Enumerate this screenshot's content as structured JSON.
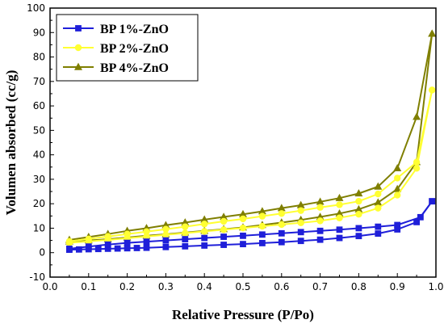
{
  "chart_data": {
    "type": "line",
    "xlabel": "Relative Pressure (P/Po)",
    "ylabel": "Volumen absorbed (cc/g)",
    "xlim": [
      0.0,
      1.0
    ],
    "ylim": [
      -10,
      100
    ],
    "xticks": [
      "0.0",
      "0.1",
      "0.2",
      "0.3",
      "0.4",
      "0.5",
      "0.6",
      "0.7",
      "0.8",
      "0.9",
      "1.0"
    ],
    "yticks": [
      "-10",
      "0",
      "10",
      "20",
      "30",
      "40",
      "50",
      "60",
      "70",
      "80",
      "90",
      "100"
    ],
    "grid": false,
    "legend_position": "top-left",
    "series": [
      {
        "name": "BP 4%-ZnO",
        "color": "#7f7f00",
        "marker": "triangle",
        "adsorption": {
          "x": [
            0.05,
            0.1,
            0.15,
            0.2,
            0.25,
            0.3,
            0.35,
            0.4,
            0.45,
            0.5,
            0.55,
            0.6,
            0.65,
            0.7,
            0.75,
            0.8,
            0.85,
            0.9,
            0.95,
            0.99
          ],
          "y": [
            4.5,
            5.0,
            5.5,
            6.2,
            6.9,
            7.5,
            8.2,
            8.9,
            9.6,
            10.3,
            11.3,
            12.3,
            13.4,
            14.6,
            16.0,
            17.7,
            20.5,
            26.0,
            37.0,
            89.5
          ]
        },
        "desorption": {
          "x": [
            0.99,
            0.95,
            0.9,
            0.85,
            0.8,
            0.75,
            0.7,
            0.65,
            0.6,
            0.55,
            0.5,
            0.45,
            0.4,
            0.35,
            0.3,
            0.25,
            0.2,
            0.15,
            0.1,
            0.05
          ],
          "y": [
            89.5,
            55.5,
            34.5,
            27.0,
            24.2,
            22.3,
            20.8,
            19.4,
            18.2,
            16.9,
            15.7,
            14.6,
            13.5,
            12.3,
            11.2,
            10.0,
            8.9,
            7.6,
            6.4,
            5.2
          ]
        }
      },
      {
        "name": "BP 2%-ZnO",
        "color": "#ffff33",
        "marker": "circle",
        "adsorption": {
          "x": [
            0.05,
            0.1,
            0.15,
            0.2,
            0.25,
            0.3,
            0.35,
            0.4,
            0.45,
            0.5,
            0.55,
            0.6,
            0.65,
            0.7,
            0.75,
            0.8,
            0.85,
            0.9,
            0.95,
            0.99
          ],
          "y": [
            4.0,
            4.6,
            5.2,
            5.9,
            6.6,
            7.3,
            8.0,
            8.7,
            9.4,
            10.1,
            10.8,
            11.5,
            12.2,
            13.0,
            14.2,
            15.7,
            18.2,
            23.5,
            34.5,
            66.5
          ]
        },
        "desorption": {
          "x": [
            0.99,
            0.95,
            0.9,
            0.85,
            0.8,
            0.75,
            0.7,
            0.65,
            0.6,
            0.55,
            0.5,
            0.45,
            0.4,
            0.35,
            0.3,
            0.25,
            0.2,
            0.15,
            0.1,
            0.05
          ],
          "y": [
            66.5,
            37.0,
            30.5,
            24.0,
            21.0,
            19.6,
            18.5,
            17.2,
            16.0,
            14.9,
            13.8,
            12.8,
            11.7,
            10.6,
            9.6,
            8.6,
            7.6,
            6.6,
            5.6,
            4.6
          ]
        }
      },
      {
        "name": "BP 1%-ZnO",
        "color": "#1f1fd9",
        "marker": "square",
        "adsorption": {
          "x": [
            0.05,
            0.075,
            0.1,
            0.125,
            0.15,
            0.175,
            0.2,
            0.225,
            0.25,
            0.3,
            0.35,
            0.4,
            0.45,
            0.5,
            0.55,
            0.6,
            0.65,
            0.7,
            0.75,
            0.8,
            0.85,
            0.9,
            0.95,
            0.99
          ],
          "y": [
            1.2,
            1.3,
            1.4,
            1.5,
            1.6,
            1.7,
            1.8,
            1.9,
            2.0,
            2.3,
            2.6,
            2.9,
            3.2,
            3.5,
            3.9,
            4.3,
            4.8,
            5.3,
            6.0,
            6.8,
            7.8,
            9.5,
            12.5,
            21.0
          ]
        },
        "desorption": {
          "x": [
            0.99,
            0.96,
            0.9,
            0.85,
            0.8,
            0.75,
            0.7,
            0.65,
            0.6,
            0.55,
            0.5,
            0.45,
            0.4,
            0.35,
            0.3,
            0.25,
            0.2,
            0.15,
            0.1,
            0.05
          ],
          "y": [
            21.0,
            14.5,
            11.3,
            10.6,
            10.0,
            9.4,
            8.9,
            8.4,
            7.9,
            7.4,
            6.9,
            6.5,
            6.0,
            5.5,
            5.0,
            4.5,
            4.0,
            3.3,
            2.5,
            1.6
          ]
        }
      }
    ]
  }
}
